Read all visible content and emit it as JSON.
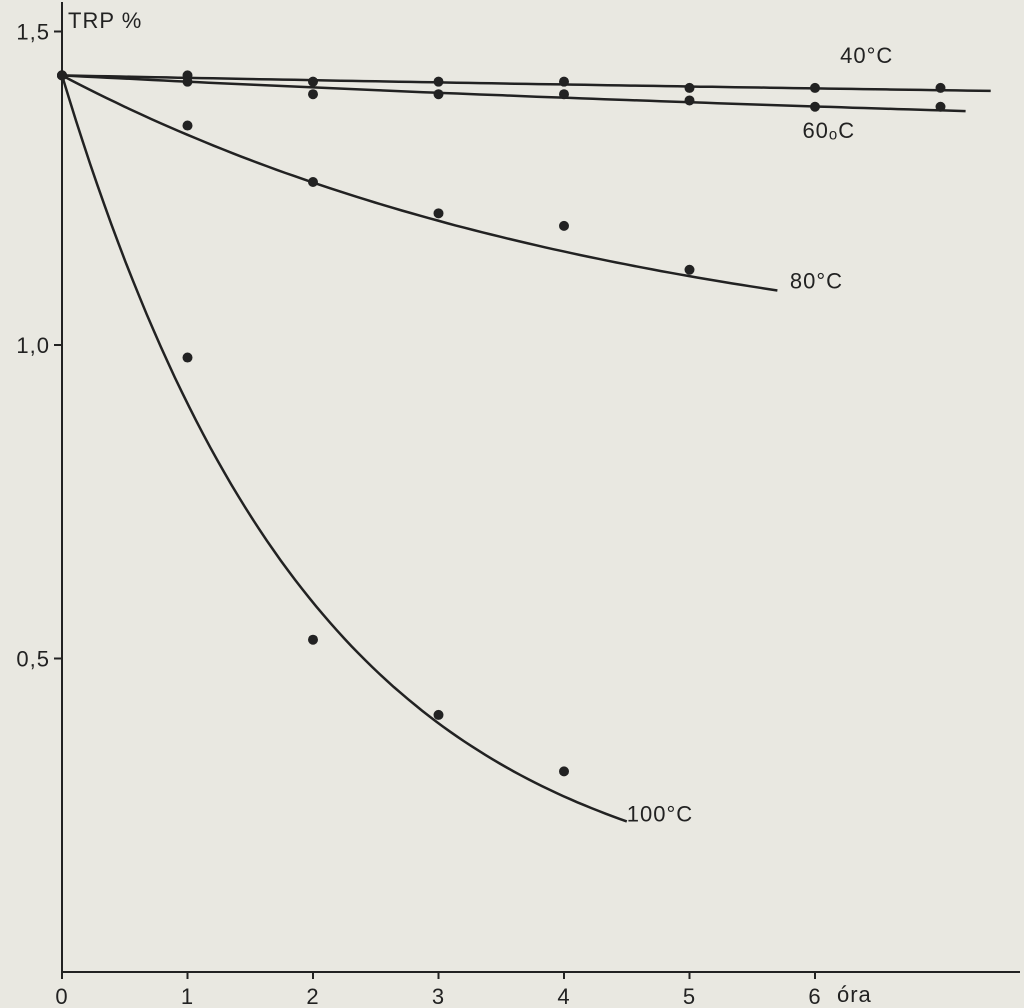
{
  "chart_data": {
    "type": "scatter",
    "title": "",
    "xlabel": "óra",
    "ylabel": "TRP %",
    "xlim": [
      0,
      7.5
    ],
    "ylim": [
      0,
      1.55
    ],
    "x_ticks": [
      0,
      1,
      2,
      3,
      4,
      5,
      6
    ],
    "x_tick_labels": [
      "0",
      "1",
      "2",
      "3",
      "4",
      "5",
      "6"
    ],
    "y_ticks": [
      0.5,
      1.0,
      1.5
    ],
    "y_tick_labels": [
      "0,5",
      "1,0",
      "1,5"
    ],
    "grid": false,
    "series": [
      {
        "name": "40°C",
        "x": [
          0,
          1,
          2,
          3,
          4,
          5,
          6,
          7
        ],
        "y": [
          1.43,
          1.43,
          1.42,
          1.42,
          1.42,
          1.41,
          1.41,
          1.41
        ],
        "curve_end_x": 7.4
      },
      {
        "name": "60ₒC",
        "x": [
          0,
          1,
          2,
          3,
          4,
          5,
          6,
          7
        ],
        "y": [
          1.43,
          1.42,
          1.4,
          1.4,
          1.4,
          1.39,
          1.38,
          1.38
        ],
        "curve_end_x": 7.2
      },
      {
        "name": "80°C",
        "x": [
          0,
          1,
          2,
          3,
          4,
          5
        ],
        "y": [
          1.43,
          1.35,
          1.26,
          1.21,
          1.19,
          1.12
        ],
        "curve_end_x": 5.7
      },
      {
        "name": "100°C",
        "x": [
          0,
          1,
          2,
          3,
          4
        ],
        "y": [
          1.43,
          0.98,
          0.53,
          0.41,
          0.32
        ],
        "curve_end_x": 4.5
      }
    ]
  }
}
